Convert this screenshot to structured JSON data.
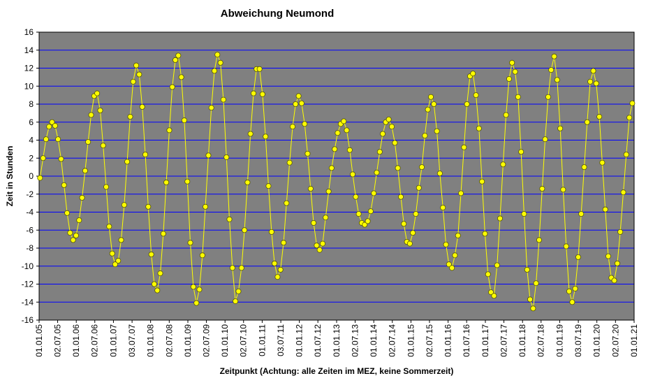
{
  "chart_data": {
    "type": "line",
    "title": "Abweichung Neumond",
    "ylabel": "Zeit in Stunden",
    "xlabel": "Zeitpunkt (Achtung: alle Zeiten im MEZ, keine Sommerzeit)",
    "color": "#ffff00",
    "marker_edge": "#555500",
    "background": "#808080",
    "grid_color": "#0000ff",
    "grid": true,
    "xlim": [
      0,
      5844
    ],
    "ylim": [
      -16,
      16
    ],
    "yticks": [
      -16,
      -14,
      -12,
      -10,
      -8,
      -6,
      -4,
      -2,
      0,
      2,
      4,
      6,
      8,
      10,
      12,
      14,
      16
    ],
    "xticks": [
      {
        "value": 0,
        "label": "01.01.05"
      },
      {
        "value": 182,
        "label": "02.07.05"
      },
      {
        "value": 365,
        "label": "01.01.06"
      },
      {
        "value": 547,
        "label": "02.07.06"
      },
      {
        "value": 730,
        "label": "01.01.07"
      },
      {
        "value": 913,
        "label": "03.07.07"
      },
      {
        "value": 1095,
        "label": "01.01.08"
      },
      {
        "value": 1278,
        "label": "02.07.08"
      },
      {
        "value": 1461,
        "label": "01.01.09"
      },
      {
        "value": 1643,
        "label": "02.07.09"
      },
      {
        "value": 1826,
        "label": "01.01.10"
      },
      {
        "value": 2008,
        "label": "02.07.10"
      },
      {
        "value": 2191,
        "label": "01.01.11"
      },
      {
        "value": 2374,
        "label": "03.07.11"
      },
      {
        "value": 2556,
        "label": "01.01.12"
      },
      {
        "value": 2738,
        "label": "01.07.12"
      },
      {
        "value": 2922,
        "label": "01.01.13"
      },
      {
        "value": 3104,
        "label": "02.07.13"
      },
      {
        "value": 3287,
        "label": "01.01.14"
      },
      {
        "value": 3469,
        "label": "02.07.14"
      },
      {
        "value": 3652,
        "label": "01.01.15"
      },
      {
        "value": 3834,
        "label": "02.07.15"
      },
      {
        "value": 4017,
        "label": "01.01.16"
      },
      {
        "value": 4199,
        "label": "01.07.16"
      },
      {
        "value": 4383,
        "label": "01.01.17"
      },
      {
        "value": 4565,
        "label": "02.07.17"
      },
      {
        "value": 4748,
        "label": "01.01.18"
      },
      {
        "value": 4930,
        "label": "02.07.18"
      },
      {
        "value": 5113,
        "label": "01.01.19"
      },
      {
        "value": 5296,
        "label": "03.07.19"
      },
      {
        "value": 5478,
        "label": "01.01.20"
      },
      {
        "value": 5661,
        "label": "02.07.20"
      },
      {
        "value": 5844,
        "label": "01.01.21"
      }
    ],
    "x": [
      9,
      39,
      68,
      98,
      127,
      157,
      186,
      216,
      245,
      275,
      304,
      334,
      363,
      393,
      422,
      452,
      481,
      511,
      541,
      570,
      600,
      629,
      659,
      688,
      718,
      747,
      777,
      806,
      836,
      865,
      895,
      924,
      954,
      983,
      1013,
      1043,
      1072,
      1102,
      1131,
      1161,
      1190,
      1220,
      1249,
      1279,
      1308,
      1338,
      1367,
      1397,
      1426,
      1456,
      1485,
      1515,
      1545,
      1574,
      1604,
      1633,
      1663,
      1692,
      1722,
      1751,
      1781,
      1810,
      1840,
      1869,
      1899,
      1928,
      1958,
      1988,
      2017,
      2047,
      2076,
      2106,
      2135,
      2165,
      2194,
      2224,
      2253,
      2283,
      2312,
      2342,
      2371,
      2401,
      2430,
      2460,
      2490,
      2519,
      2549,
      2578,
      2608,
      2637,
      2667,
      2696,
      2726,
      2755,
      2785,
      2814,
      2844,
      2873,
      2903,
      2932,
      2962,
      2992,
      3021,
      3051,
      3080,
      3110,
      3139,
      3169,
      3198,
      3228,
      3257,
      3287,
      3316,
      3346,
      3375,
      3405,
      3434,
      3464,
      3494,
      3523,
      3553,
      3582,
      3612,
      3641,
      3671,
      3700,
      3730,
      3759,
      3789,
      3818,
      3848,
      3877,
      3907,
      3936,
      3966,
      3996,
      4025,
      4055,
      4084,
      4114,
      4143,
      4173,
      4202,
      4232,
      4261,
      4291,
      4320,
      4350,
      4379,
      4409,
      4438,
      4468,
      4498,
      4527,
      4557,
      4586,
      4616,
      4645,
      4675,
      4704,
      4734,
      4763,
      4793,
      4822,
      4852,
      4881,
      4911,
      4941,
      4970,
      5000,
      5029,
      5059,
      5088,
      5118,
      5147,
      5177,
      5206,
      5236,
      5265,
      5295,
      5324,
      5354,
      5383,
      5413,
      5443,
      5472,
      5502,
      5531,
      5561,
      5590,
      5620,
      5649,
      5679,
      5708,
      5738,
      5767,
      5797,
      5826
    ],
    "values": [
      -0.2,
      2.0,
      4.1,
      5.5,
      6.0,
      5.6,
      4.1,
      1.9,
      -1.0,
      -4.1,
      -6.3,
      -7.1,
      -6.6,
      -4.9,
      -2.4,
      0.6,
      3.8,
      6.8,
      8.9,
      9.2,
      7.3,
      3.4,
      -1.2,
      -5.6,
      -8.6,
      -9.8,
      -9.4,
      -7.1,
      -3.2,
      1.6,
      6.6,
      10.5,
      12.3,
      11.3,
      7.7,
      2.4,
      -3.4,
      -8.7,
      -12.0,
      -12.7,
      -10.8,
      -6.4,
      -0.7,
      5.1,
      9.9,
      12.9,
      13.4,
      11.0,
      6.2,
      -0.6,
      -7.4,
      -12.3,
      -14.1,
      -12.6,
      -8.8,
      -3.4,
      2.3,
      7.6,
      11.7,
      13.5,
      12.6,
      8.5,
      2.1,
      -4.8,
      -10.2,
      -13.9,
      -12.8,
      -10.2,
      -6.0,
      -0.7,
      4.7,
      9.2,
      11.9,
      11.9,
      9.1,
      4.4,
      -1.1,
      -6.2,
      -9.7,
      -11.2,
      -10.4,
      -7.4,
      -3.0,
      1.5,
      5.5,
      8.0,
      8.9,
      8.1,
      5.8,
      2.5,
      -1.4,
      -5.2,
      -7.7,
      -8.2,
      -7.5,
      -4.6,
      -1.7,
      0.9,
      3.0,
      4.8,
      5.8,
      6.1,
      5.1,
      2.9,
      0.2,
      -2.3,
      -4.2,
      -5.2,
      -5.4,
      -5.0,
      -3.9,
      -1.9,
      0.4,
      2.7,
      4.7,
      6.0,
      6.3,
      5.5,
      3.7,
      0.9,
      -2.3,
      -5.3,
      -7.3,
      -7.5,
      -6.3,
      -4.2,
      -1.3,
      1.0,
      4.5,
      7.4,
      8.8,
      8.0,
      5.0,
      0.3,
      -3.5,
      -7.6,
      -9.8,
      -10.2,
      -8.8,
      -6.6,
      -1.9,
      3.2,
      8.0,
      11.1,
      11.4,
      9.0,
      5.3,
      -0.6,
      -6.4,
      -10.9,
      -12.9,
      -13.3,
      -9.9,
      -4.7,
      1.3,
      6.8,
      10.8,
      12.6,
      11.6,
      8.8,
      2.7,
      -4.2,
      -10.4,
      -13.7,
      -14.7,
      -11.9,
      -7.1,
      -1.4,
      4.1,
      8.8,
      11.8,
      13.3,
      10.7,
      5.3,
      -1.5,
      -7.8,
      -12.8,
      -14.0,
      -12.5,
      -9.0,
      -4.2,
      1.0,
      6.0,
      10.5,
      11.7,
      10.3,
      6.6,
      1.5,
      -3.7,
      -8.9,
      -11.3,
      -11.6,
      -9.7,
      -6.2,
      -1.8,
      2.4,
      6.5,
      8.1
    ]
  }
}
